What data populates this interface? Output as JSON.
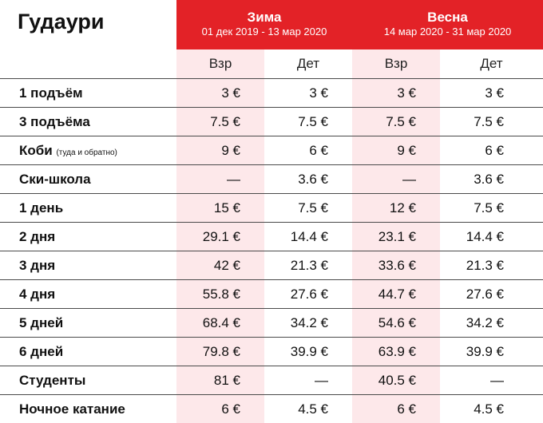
{
  "title": "Гудаури",
  "seasons": [
    {
      "name": "Зима",
      "dates": "01 дек 2019 - 13 мар 2020"
    },
    {
      "name": "Весна",
      "dates": "14 мар 2020 - 31 мар 2020"
    }
  ],
  "sub_headers": [
    "Взр",
    "Дет",
    "Взр",
    "Дет"
  ],
  "rows": [
    {
      "label": "1 подъём",
      "note": "",
      "values": [
        "3 €",
        "3 €",
        "3 €",
        "3 €"
      ]
    },
    {
      "label": "3 подъёма",
      "note": "",
      "values": [
        "7.5 €",
        "7.5 €",
        "7.5 €",
        "7.5 €"
      ]
    },
    {
      "label": "Коби",
      "note": "(туда и обратно)",
      "values": [
        "9 €",
        "6 €",
        "9 €",
        "6 €"
      ]
    },
    {
      "label": "Ски-школа",
      "note": "",
      "values": [
        "—",
        "3.6 €",
        "—",
        "3.6 €"
      ]
    },
    {
      "label": "1 день",
      "note": "",
      "values": [
        "15 €",
        "7.5 €",
        "12 €",
        "7.5 €"
      ]
    },
    {
      "label": "2 дня",
      "note": "",
      "values": [
        "29.1 €",
        "14.4 €",
        "23.1 €",
        "14.4 €"
      ]
    },
    {
      "label": "3 дня",
      "note": "",
      "values": [
        "42 €",
        "21.3 €",
        "33.6 €",
        "21.3 €"
      ]
    },
    {
      "label": "4 дня",
      "note": "",
      "values": [
        "55.8 €",
        "27.6 €",
        "44.7 €",
        "27.6 €"
      ]
    },
    {
      "label": "5 дней",
      "note": "",
      "values": [
        "68.4 €",
        "34.2 €",
        "54.6 €",
        "34.2 €"
      ]
    },
    {
      "label": "6 дней",
      "note": "",
      "values": [
        "79.8 €",
        "39.9 €",
        "63.9 €",
        "39.9 €"
      ]
    },
    {
      "label": "Студенты",
      "note": "",
      "values": [
        "81 €",
        "—",
        "40.5 €",
        "—"
      ]
    },
    {
      "label": "Ночное катание",
      "note": "",
      "values": [
        "6 €",
        "4.5 €",
        "6 €",
        "4.5 €"
      ]
    }
  ],
  "colors": {
    "accent": "#e32227",
    "highlight": "#fde8ea",
    "rule": "#4a4a4a"
  }
}
